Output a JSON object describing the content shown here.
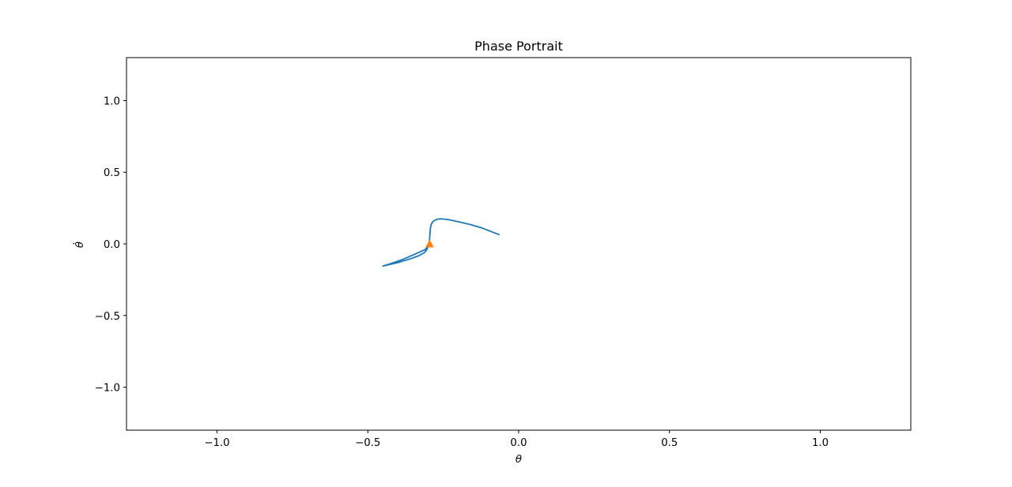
{
  "chart_data": {
    "type": "line",
    "title": "Phase Portrait",
    "xlabel": "θ",
    "ylabel": "θ̇",
    "xlim": [
      -1.3,
      1.3
    ],
    "ylim": [
      -1.3,
      1.3
    ],
    "xticks": [
      -1.0,
      -0.5,
      0.0,
      0.5,
      1.0
    ],
    "yticks": [
      -1.0,
      -0.5,
      0.0,
      0.5,
      1.0
    ],
    "xtick_labels": [
      "−1.0",
      "−0.5",
      "0.0",
      "0.5",
      "1.0"
    ],
    "ytick_labels": [
      "−1.0",
      "−0.5",
      "0.0",
      "0.5",
      "1.0"
    ],
    "grid": false,
    "series": [
      {
        "color": "#1f77b4",
        "x": [
          -0.065,
          -0.09,
          -0.12,
          -0.16,
          -0.2,
          -0.23,
          -0.245,
          -0.26,
          -0.27,
          -0.28,
          -0.287,
          -0.291,
          -0.293,
          -0.294,
          -0.295,
          -0.296,
          -0.3,
          -0.305,
          -0.312,
          -0.33,
          -0.36,
          -0.4,
          -0.45,
          -0.42,
          -0.38,
          -0.34,
          -0.31,
          -0.295
        ],
        "y": [
          0.065,
          0.085,
          0.11,
          0.135,
          0.155,
          0.168,
          0.173,
          0.175,
          0.172,
          0.163,
          0.148,
          0.128,
          0.1,
          0.07,
          0.04,
          0.015,
          -0.02,
          -0.042,
          -0.06,
          -0.082,
          -0.105,
          -0.13,
          -0.155,
          -0.135,
          -0.105,
          -0.068,
          -0.04,
          -0.005
        ]
      }
    ],
    "markers": [
      {
        "shape": "triangle",
        "color": "#ff7f0e",
        "x": -0.295,
        "y": 0.0
      }
    ]
  }
}
